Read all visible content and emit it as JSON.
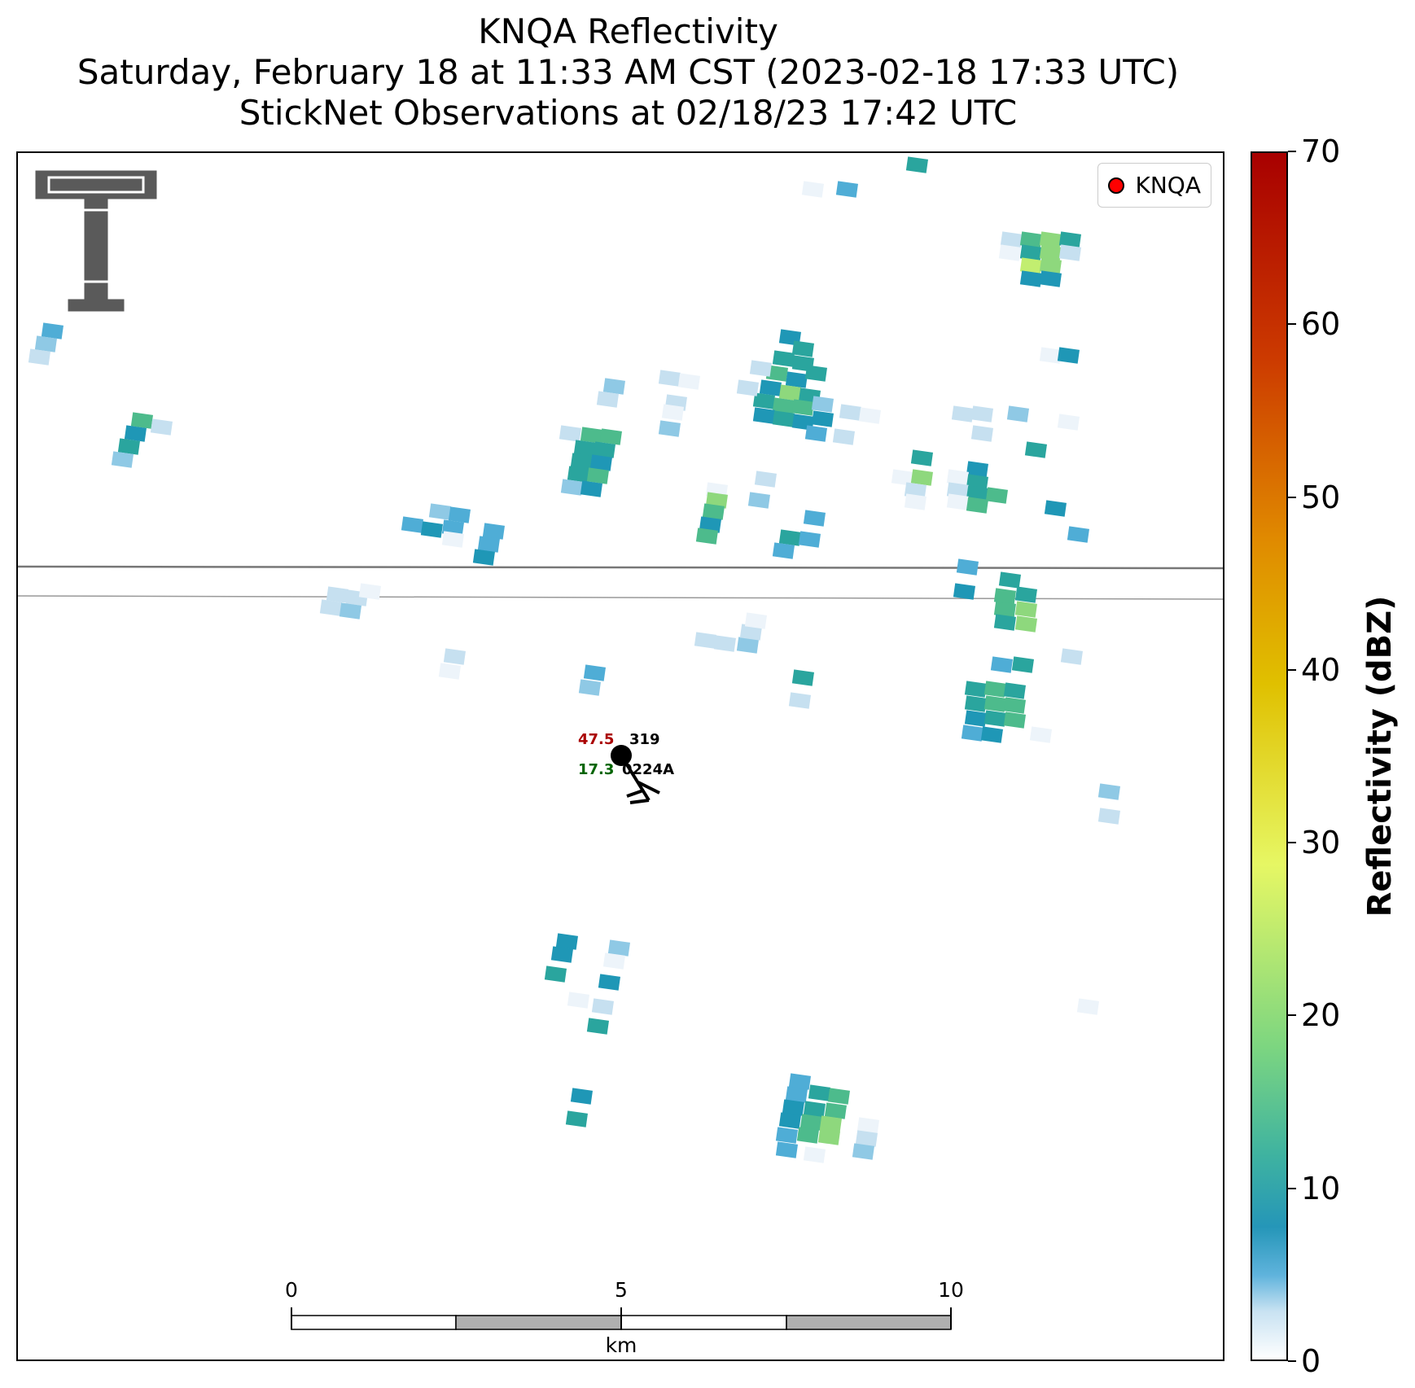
{
  "titles": {
    "line1": "KNQA Reflectivity",
    "line2": "Saturday, February 18 at 11:33 AM CST (2023-02-18 17:33 UTC)",
    "line3": "StickNet Observations at 02/18/23 17:42 UTC"
  },
  "legend": {
    "label": "KNQA",
    "marker_color": "#ff0000"
  },
  "scale_bar": {
    "labels": [
      "0",
      "5",
      "10"
    ],
    "unit": "km"
  },
  "observation": {
    "temperature": "47.5",
    "pressure": "319",
    "dewpoint": "17.3",
    "station_id": "0224A",
    "temperature_color": "#aa0000",
    "dewpoint_color": "#006400"
  },
  "colorbar": {
    "label": "Reflectivity (dBZ)",
    "range": [
      0,
      70
    ],
    "ticks": [
      "0",
      "10",
      "20",
      "30",
      "40",
      "50",
      "60",
      "70"
    ]
  },
  "logo": {
    "icon": "texas-tech-double-t-logo"
  }
}
